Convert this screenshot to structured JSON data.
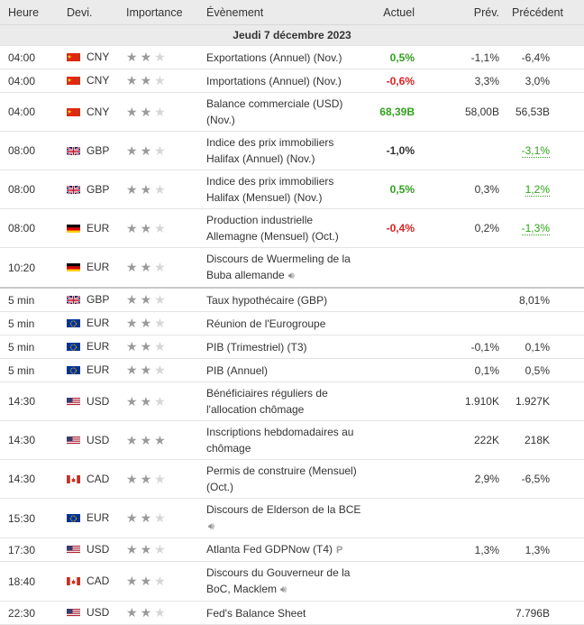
{
  "headers": {
    "time": "Heure",
    "currency": "Devi.",
    "importance": "Importance",
    "event": "Évènement",
    "actual": "Actuel",
    "forecast": "Prév.",
    "previous": "Précédent"
  },
  "date": "Jeudi 7 décembre 2023",
  "colors": {
    "good": "#32a01e",
    "bad": "#e02020"
  },
  "rows": [
    {
      "time": "04:00",
      "flag": "cn",
      "currency": "CNY",
      "stars": 2,
      "event": "Exportations (Annuel) (Nov.)",
      "actual": "0,5%",
      "actual_class": "good",
      "forecast": "-1,1%",
      "previous": "-6,4%",
      "prev_class": "plain",
      "icon": ""
    },
    {
      "time": "04:00",
      "flag": "cn",
      "currency": "CNY",
      "stars": 2,
      "event": "Importations (Annuel) (Nov.)",
      "actual": "-0,6%",
      "actual_class": "bad",
      "forecast": "3,3%",
      "previous": "3,0%",
      "prev_class": "plain",
      "icon": ""
    },
    {
      "time": "04:00",
      "flag": "cn",
      "currency": "CNY",
      "stars": 2,
      "event": "Balance commerciale (USD)",
      "event2": "(Nov.)",
      "actual": "68,39B",
      "actual_class": "good",
      "forecast": "58,00B",
      "previous": "56,53B",
      "prev_class": "plain",
      "icon": ""
    },
    {
      "time": "08:00",
      "flag": "gb",
      "currency": "GBP",
      "stars": 2,
      "event": "Indice des prix immobiliers",
      "event2": "Halifax (Annuel) (Nov.)",
      "actual": "-1,0%",
      "actual_class": "neutral",
      "forecast": "",
      "previous": "-3,1%",
      "prev_class": "good",
      "icon": ""
    },
    {
      "time": "08:00",
      "flag": "gb",
      "currency": "GBP",
      "stars": 2,
      "event": "Indice des prix immobiliers",
      "event2": "Halifax (Mensuel) (Nov.)",
      "actual": "0,5%",
      "actual_class": "good",
      "forecast": "0,3%",
      "previous": "1,2%",
      "prev_class": "good",
      "icon": ""
    },
    {
      "time": "08:00",
      "flag": "de",
      "currency": "EUR",
      "stars": 2,
      "event": "Production industrielle",
      "event2": "Allemagne (Mensuel) (Oct.)",
      "actual": "-0,4%",
      "actual_class": "bad",
      "forecast": "0,2%",
      "previous": "-1,3%",
      "prev_class": "good",
      "icon": ""
    },
    {
      "time": "10:20",
      "flag": "de",
      "currency": "EUR",
      "stars": 2,
      "event": "Discours de Wuermeling de la",
      "event2": "Buba allemande",
      "actual": "",
      "actual_class": "neutral",
      "forecast": "",
      "previous": "",
      "prev_class": "plain",
      "icon": "sound",
      "sep": true
    },
    {
      "time": "5 min",
      "flag": "gb",
      "currency": "GBP",
      "stars": 2,
      "event": "Taux hypothécaire (GBP)",
      "actual": "",
      "actual_class": "neutral",
      "forecast": "",
      "previous": "8,01%",
      "prev_class": "plain",
      "icon": ""
    },
    {
      "time": "5 min",
      "flag": "eu",
      "currency": "EUR",
      "stars": 2,
      "event": "Réunion de l'Eurogroupe",
      "actual": "",
      "actual_class": "neutral",
      "forecast": "",
      "previous": "",
      "prev_class": "plain",
      "icon": ""
    },
    {
      "time": "5 min",
      "flag": "eu",
      "currency": "EUR",
      "stars": 2,
      "event": "PIB (Trimestriel) (T3)",
      "actual": "",
      "actual_class": "neutral",
      "forecast": "-0,1%",
      "previous": "0,1%",
      "prev_class": "plain",
      "icon": ""
    },
    {
      "time": "5 min",
      "flag": "eu",
      "currency": "EUR",
      "stars": 2,
      "event": "PIB (Annuel)",
      "actual": "",
      "actual_class": "neutral",
      "forecast": "0,1%",
      "previous": "0,5%",
      "prev_class": "plain",
      "icon": ""
    },
    {
      "time": "14:30",
      "flag": "us",
      "currency": "USD",
      "stars": 2,
      "event": "Bénéficiaires réguliers de",
      "event2": "l'allocation chômage",
      "actual": "",
      "actual_class": "neutral",
      "forecast": "1.910K",
      "previous": "1.927K",
      "prev_class": "plain",
      "icon": ""
    },
    {
      "time": "14:30",
      "flag": "us",
      "currency": "USD",
      "stars": 3,
      "event": "Inscriptions hebdomadaires au",
      "event2": "chômage",
      "actual": "",
      "actual_class": "neutral",
      "forecast": "222K",
      "previous": "218K",
      "prev_class": "plain",
      "icon": ""
    },
    {
      "time": "14:30",
      "flag": "ca",
      "currency": "CAD",
      "stars": 2,
      "event": "Permis de construire (Mensuel)",
      "event2": "(Oct.)",
      "actual": "",
      "actual_class": "neutral",
      "forecast": "2,9%",
      "previous": "-6,5%",
      "prev_class": "plain",
      "icon": ""
    },
    {
      "time": "15:30",
      "flag": "eu",
      "currency": "EUR",
      "stars": 2,
      "event": "Discours de Elderson de la BCE",
      "event2": "",
      "actual": "",
      "actual_class": "neutral",
      "forecast": "",
      "previous": "",
      "prev_class": "plain",
      "icon": "sound2"
    },
    {
      "time": "17:30",
      "flag": "us",
      "currency": "USD",
      "stars": 2,
      "event": "Atlanta Fed GDPNow (T4)",
      "actual": "",
      "actual_class": "neutral",
      "forecast": "1,3%",
      "previous": "1,3%",
      "prev_class": "plain",
      "icon": "prelim"
    },
    {
      "time": "18:40",
      "flag": "ca",
      "currency": "CAD",
      "stars": 2,
      "event": "Discours du Gouverneur de la",
      "event2": "BoC, Macklem",
      "actual": "",
      "actual_class": "neutral",
      "forecast": "",
      "previous": "",
      "prev_class": "plain",
      "icon": "sound"
    },
    {
      "time": "22:30",
      "flag": "us",
      "currency": "USD",
      "stars": 2,
      "event": "Fed's Balance Sheet",
      "actual": "",
      "actual_class": "neutral",
      "forecast": "",
      "previous": "7.796B",
      "prev_class": "plain",
      "icon": ""
    }
  ]
}
